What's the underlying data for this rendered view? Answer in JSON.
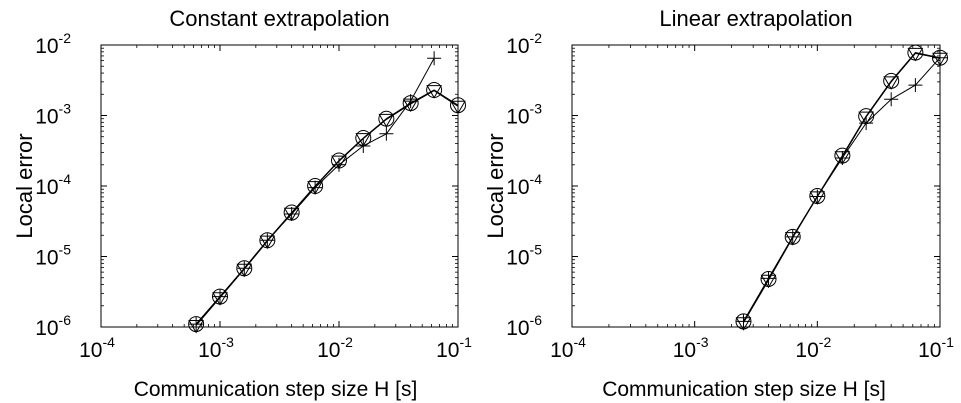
{
  "chart_data": [
    {
      "type": "scatter",
      "title": "Constant extrapolation",
      "xlabel": "Communication step size  H [s]",
      "ylabel": "Local error",
      "x_scale": "log",
      "y_scale": "log",
      "xlim": [
        0.0001,
        0.1
      ],
      "ylim": [
        1e-06,
        0.01
      ],
      "x_ticks": [
        {
          "value": 0.0001,
          "base": "10",
          "exp": "-4"
        },
        {
          "value": 0.001,
          "base": "10",
          "exp": "-3"
        },
        {
          "value": 0.01,
          "base": "10",
          "exp": "-2"
        },
        {
          "value": 0.1,
          "base": "10",
          "exp": "-1"
        }
      ],
      "y_ticks": [
        {
          "value": 1e-06,
          "base": "10",
          "exp": "-6"
        },
        {
          "value": 1e-05,
          "base": "10",
          "exp": "-5"
        },
        {
          "value": 0.0001,
          "base": "10",
          "exp": "-4"
        },
        {
          "value": 0.001,
          "base": "10",
          "exp": "-3"
        },
        {
          "value": 0.01,
          "base": "10",
          "exp": "-2"
        }
      ],
      "grid": false,
      "series": [
        {
          "marker": "circle",
          "x": [
            0.00063,
            0.001,
            0.0016,
            0.0025,
            0.004,
            0.0063,
            0.01,
            0.016,
            0.025,
            0.04,
            0.063,
            0.1
          ],
          "y": [
            1.1e-06,
            2.7e-06,
            6.8e-06,
            1.7e-05,
            4.2e-05,
            0.0001,
            0.00023,
            0.00048,
            0.0009,
            0.0015,
            0.0023,
            0.0014
          ]
        },
        {
          "marker": "triangle-down",
          "x": [
            0.00063,
            0.001,
            0.0016,
            0.0025,
            0.004,
            0.0063,
            0.01,
            0.016,
            0.025,
            0.04,
            0.063,
            0.1
          ],
          "y": [
            1.05e-06,
            2.6e-06,
            6.6e-06,
            1.65e-05,
            4.1e-05,
            9.8e-05,
            0.000225,
            0.00047,
            0.00088,
            0.00145,
            0.00225,
            0.00135
          ]
        },
        {
          "marker": "plus",
          "x": [
            0.00063,
            0.001,
            0.0016,
            0.0025,
            0.004,
            0.0063,
            0.01,
            0.016,
            0.025,
            0.04,
            0.063
          ],
          "y": [
            1.1e-06,
            2.7e-06,
            6.8e-06,
            1.7e-05,
            4e-05,
            9.5e-05,
            0.0002,
            0.00037,
            0.00055,
            0.0016,
            0.0065
          ]
        }
      ]
    },
    {
      "type": "scatter",
      "title": "Linear extrapolation",
      "xlabel": "Communication step size  H [s]",
      "ylabel": "Local error",
      "x_scale": "log",
      "y_scale": "log",
      "xlim": [
        0.0001,
        0.1
      ],
      "ylim": [
        1e-06,
        0.01
      ],
      "x_ticks": [
        {
          "value": 0.0001,
          "base": "10",
          "exp": "-4"
        },
        {
          "value": 0.001,
          "base": "10",
          "exp": "-3"
        },
        {
          "value": 0.01,
          "base": "10",
          "exp": "-2"
        },
        {
          "value": 0.1,
          "base": "10",
          "exp": "-1"
        }
      ],
      "y_ticks": [
        {
          "value": 1e-06,
          "base": "10",
          "exp": "-6"
        },
        {
          "value": 1e-05,
          "base": "10",
          "exp": "-5"
        },
        {
          "value": 0.0001,
          "base": "10",
          "exp": "-4"
        },
        {
          "value": 0.001,
          "base": "10",
          "exp": "-3"
        },
        {
          "value": 0.01,
          "base": "10",
          "exp": "-2"
        }
      ],
      "grid": false,
      "series": [
        {
          "marker": "circle",
          "x": [
            0.0025,
            0.004,
            0.0063,
            0.01,
            0.016,
            0.025,
            0.04,
            0.063,
            0.1
          ],
          "y": [
            1.2e-06,
            4.8e-06,
            1.9e-05,
            7.2e-05,
            0.00027,
            0.00098,
            0.0031,
            0.0078,
            0.0066
          ]
        },
        {
          "marker": "triangle-down",
          "x": [
            0.0025,
            0.004,
            0.0063,
            0.01,
            0.016,
            0.025,
            0.04,
            0.063,
            0.1
          ],
          "y": [
            1.15e-06,
            4.6e-06,
            1.85e-05,
            7e-05,
            0.00026,
            0.00095,
            0.003,
            0.0076,
            0.0065
          ]
        },
        {
          "marker": "plus",
          "x": [
            0.0025,
            0.004,
            0.0063,
            0.01,
            0.016,
            0.025,
            0.04,
            0.063,
            0.1
          ],
          "y": [
            1.2e-06,
            4.9e-06,
            1.9e-05,
            7.1e-05,
            0.00025,
            0.00078,
            0.0017,
            0.0027,
            0.0066
          ]
        }
      ]
    }
  ]
}
